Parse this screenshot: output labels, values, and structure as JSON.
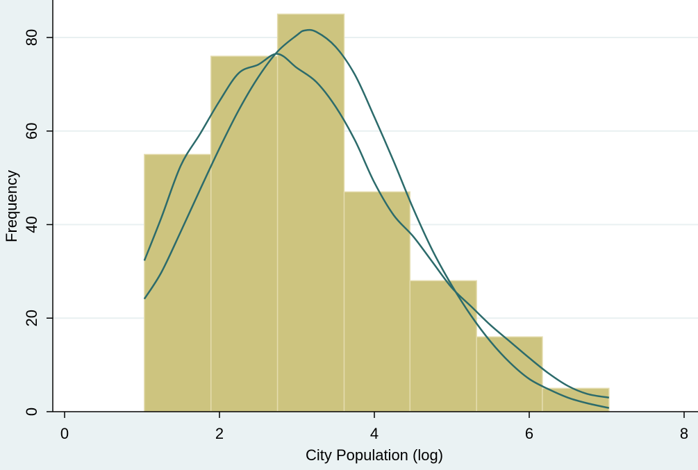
{
  "chart_data": {
    "type": "bar",
    "xlabel": "City Population (log)",
    "ylabel": "Frequency",
    "xlim": [
      0,
      8
    ],
    "ylim": [
      0,
      85
    ],
    "xticks": [
      "0",
      "2",
      "4",
      "6",
      "8"
    ],
    "yticks": [
      "0",
      "20",
      "40",
      "60",
      "80"
    ],
    "grid": true,
    "bins": [
      {
        "x0": 1.03,
        "x1": 1.89,
        "value": 55
      },
      {
        "x0": 1.89,
        "x1": 2.75,
        "value": 76
      },
      {
        "x0": 2.75,
        "x1": 3.61,
        "value": 85
      },
      {
        "x0": 3.61,
        "x1": 4.46,
        "value": 47
      },
      {
        "x0": 4.46,
        "x1": 5.32,
        "value": 28
      },
      {
        "x0": 5.32,
        "x1": 6.17,
        "value": 16
      },
      {
        "x0": 6.17,
        "x1": 7.03,
        "value": 5
      }
    ],
    "curves": [
      {
        "kind": "kernel density",
        "points": [
          [
            1.03,
            32.3
          ],
          [
            1.25,
            41.5
          ],
          [
            1.5,
            52.6
          ],
          [
            1.75,
            59.4
          ],
          [
            2.0,
            66.4
          ],
          [
            2.25,
            72.4
          ],
          [
            2.5,
            74.2
          ],
          [
            2.75,
            76.5
          ],
          [
            3.0,
            73.5
          ],
          [
            3.25,
            70.5
          ],
          [
            3.5,
            65.2
          ],
          [
            3.75,
            58.0
          ],
          [
            4.0,
            49.0
          ],
          [
            4.25,
            42.0
          ],
          [
            4.5,
            37.5
          ],
          [
            4.75,
            32.0
          ],
          [
            5.0,
            26.5
          ],
          [
            5.25,
            22.5
          ],
          [
            5.5,
            18.5
          ],
          [
            5.75,
            15.0
          ],
          [
            6.0,
            11.5
          ],
          [
            6.25,
            8.2
          ],
          [
            6.5,
            5.5
          ],
          [
            6.75,
            3.8
          ],
          [
            7.03,
            3.0
          ]
        ]
      },
      {
        "kind": "normal density",
        "points": [
          [
            1.03,
            24.1
          ],
          [
            1.25,
            29.8
          ],
          [
            1.5,
            38.5
          ],
          [
            1.75,
            47.5
          ],
          [
            2.0,
            56.3
          ],
          [
            2.25,
            64.5
          ],
          [
            2.5,
            71.5
          ],
          [
            2.75,
            77.0
          ],
          [
            3.0,
            80.5
          ],
          [
            3.1,
            81.5
          ],
          [
            3.25,
            81.2
          ],
          [
            3.5,
            78.0
          ],
          [
            3.75,
            72.0
          ],
          [
            4.0,
            63.0
          ],
          [
            4.25,
            53.5
          ],
          [
            4.5,
            43.5
          ],
          [
            4.75,
            34.5
          ],
          [
            5.0,
            27.0
          ],
          [
            5.25,
            20.5
          ],
          [
            5.5,
            15.0
          ],
          [
            5.75,
            10.5
          ],
          [
            6.0,
            7.0
          ],
          [
            6.25,
            4.8
          ],
          [
            6.5,
            3.0
          ],
          [
            6.75,
            1.8
          ],
          [
            7.03,
            0.8
          ]
        ]
      }
    ],
    "colors": {
      "background": "#eaf2f3",
      "plot_area": "#ffffff",
      "gridline": "#e8f0f1",
      "bar_fill": "#cdc47f",
      "bar_edge": "#e4dcae",
      "curve": "#2c6b6b",
      "axis": "#000000"
    }
  }
}
